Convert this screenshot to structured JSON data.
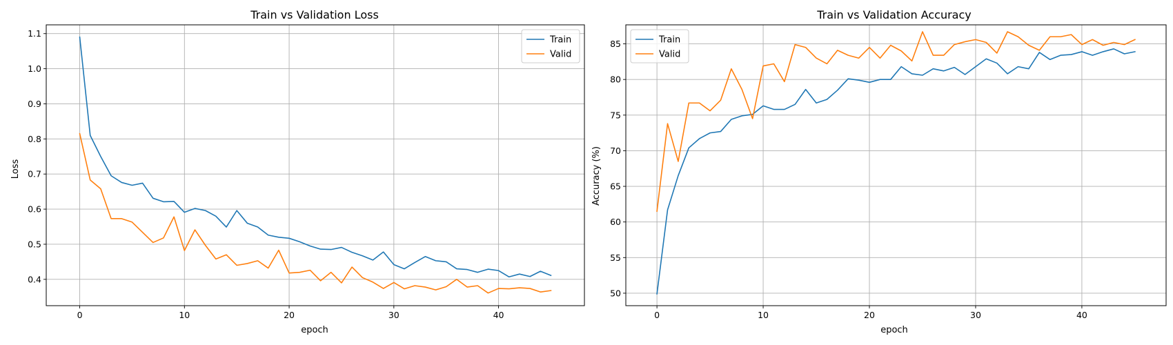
{
  "chart_data": [
    {
      "type": "line",
      "title": "Train vs Validation Loss",
      "xlabel": "epoch",
      "ylabel": "Loss",
      "xlim": [
        -3.2,
        48.2
      ],
      "ylim": [
        0.325,
        1.125
      ],
      "xticks": [
        0,
        10,
        20,
        30,
        40
      ],
      "xtick_labels": [
        "0",
        "10",
        "20",
        "30",
        "40"
      ],
      "yticks": [
        0.4,
        0.5,
        0.6,
        0.7,
        0.8,
        0.9,
        1.0,
        1.1
      ],
      "ytick_labels": [
        "0.4",
        "0.5",
        "0.6",
        "0.7",
        "0.8",
        "0.9",
        "1.0",
        "1.1"
      ],
      "grid": true,
      "legend_position": "top-right",
      "x": [
        0,
        1,
        2,
        3,
        4,
        5,
        6,
        7,
        8,
        9,
        10,
        11,
        12,
        13,
        14,
        15,
        16,
        17,
        18,
        19,
        20,
        21,
        22,
        23,
        24,
        25,
        26,
        27,
        28,
        29,
        30,
        31,
        32,
        33,
        34,
        35,
        36,
        37,
        38,
        39,
        40,
        41,
        42,
        43,
        44,
        45
      ],
      "series": [
        {
          "name": "Train",
          "color": "#1f77b4",
          "values": [
            1.09,
            0.81,
            0.75,
            0.695,
            0.676,
            0.668,
            0.674,
            0.631,
            0.621,
            0.622,
            0.591,
            0.602,
            0.596,
            0.58,
            0.549,
            0.596,
            0.56,
            0.549,
            0.526,
            0.52,
            0.517,
            0.507,
            0.495,
            0.486,
            0.485,
            0.491,
            0.477,
            0.467,
            0.455,
            0.478,
            0.442,
            0.43,
            0.448,
            0.465,
            0.453,
            0.45,
            0.43,
            0.428,
            0.42,
            0.429,
            0.425,
            0.407,
            0.415,
            0.408,
            0.423,
            0.411
          ]
        },
        {
          "name": "Valid",
          "color": "#ff7f0e",
          "values": [
            0.815,
            0.683,
            0.658,
            0.573,
            0.573,
            0.563,
            0.534,
            0.505,
            0.518,
            0.578,
            0.482,
            0.541,
            0.497,
            0.458,
            0.47,
            0.44,
            0.445,
            0.453,
            0.432,
            0.483,
            0.418,
            0.42,
            0.426,
            0.396,
            0.42,
            0.39,
            0.435,
            0.405,
            0.392,
            0.374,
            0.391,
            0.373,
            0.382,
            0.378,
            0.37,
            0.379,
            0.4,
            0.378,
            0.382,
            0.361,
            0.374,
            0.373,
            0.376,
            0.374,
            0.364,
            0.368
          ]
        }
      ]
    },
    {
      "type": "line",
      "title": "Train vs Validation Accuracy",
      "xlabel": "epoch",
      "ylabel": "Accuracy (%)",
      "xlim": [
        -2.93,
        47.93
      ],
      "ylim": [
        48.25,
        87.67
      ],
      "xticks": [
        0,
        10,
        20,
        30,
        40
      ],
      "xtick_labels": [
        "0",
        "10",
        "20",
        "30",
        "40"
      ],
      "yticks": [
        50,
        55,
        60,
        65,
        70,
        75,
        80,
        85
      ],
      "ytick_labels": [
        "50",
        "55",
        "60",
        "65",
        "70",
        "75",
        "80",
        "85"
      ],
      "grid": true,
      "legend_position": "top-left",
      "x": [
        0,
        1,
        2,
        3,
        4,
        5,
        6,
        7,
        8,
        9,
        10,
        11,
        12,
        13,
        14,
        15,
        16,
        17,
        18,
        19,
        20,
        21,
        22,
        23,
        24,
        25,
        26,
        27,
        28,
        29,
        30,
        31,
        32,
        33,
        34,
        35,
        36,
        37,
        38,
        39,
        40,
        41,
        42,
        43,
        44,
        45
      ],
      "series": [
        {
          "name": "Train",
          "color": "#1f77b4",
          "values": [
            49.9,
            61.7,
            66.5,
            70.4,
            71.7,
            72.5,
            72.7,
            74.4,
            74.9,
            75.1,
            76.3,
            75.8,
            75.8,
            76.5,
            78.6,
            76.7,
            77.2,
            78.5,
            80.1,
            79.9,
            79.6,
            80.0,
            80.0,
            81.8,
            80.8,
            80.6,
            81.5,
            81.2,
            81.7,
            80.7,
            81.8,
            82.9,
            82.3,
            80.8,
            81.8,
            81.5,
            83.8,
            82.8,
            83.4,
            83.5,
            83.9,
            83.4,
            83.9,
            84.3,
            83.6,
            83.9
          ]
        },
        {
          "name": "Valid",
          "color": "#ff7f0e",
          "values": [
            61.5,
            73.8,
            68.5,
            76.7,
            76.7,
            75.6,
            77.1,
            81.5,
            78.6,
            74.5,
            81.9,
            82.2,
            79.7,
            84.9,
            84.5,
            83.0,
            82.2,
            84.1,
            83.4,
            83.0,
            84.5,
            83.0,
            84.8,
            84.0,
            82.6,
            86.7,
            83.4,
            83.4,
            84.9,
            85.3,
            85.6,
            85.2,
            83.7,
            86.7,
            86.0,
            84.8,
            84.1,
            86.0,
            86.0,
            86.3,
            84.9,
            85.6,
            84.8,
            85.2,
            84.9,
            85.6
          ]
        }
      ]
    }
  ]
}
